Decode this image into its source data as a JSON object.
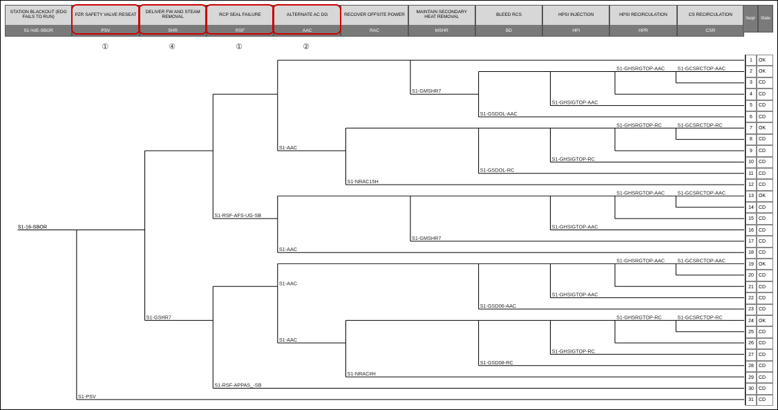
{
  "header": {
    "columns": [
      {
        "title": "STATION BLACKOUT (EDG FAILS TO RUN)",
        "abbr": "S1-%IE-SBOR"
      },
      {
        "title": "PZR SAFETY VALVE RESEAT",
        "abbr": "PSV",
        "highlight": true,
        "annot": "①"
      },
      {
        "title": "DELIVER FW AND STEAM REMOVAL",
        "abbr": "SHR",
        "highlight": true,
        "annot": "④"
      },
      {
        "title": "RCP SEAL FAILURE",
        "abbr": "RSF",
        "highlight": true,
        "annot": "①"
      },
      {
        "title": "ALTERNATE AC DG",
        "abbr": "AAC",
        "highlight": true,
        "annot": "②"
      },
      {
        "title": "RECOVER OFFSITE POWER",
        "abbr": "RAC"
      },
      {
        "title": "MAINTAIN SECONDARY HEAT REMOVAL",
        "abbr": "MSHR"
      },
      {
        "title": "BLEED RCS",
        "abbr": "BD"
      },
      {
        "title": "HPSI INJECTION",
        "abbr": "HPI"
      },
      {
        "title": "HPSI RECIRCULATION",
        "abbr": "HPR"
      },
      {
        "title": "CS RECIRCULATION",
        "abbr": "CSR"
      }
    ],
    "endcols": [
      "Seq#",
      "State"
    ]
  },
  "tree": {
    "root_label": "S1-16-SBOR",
    "upper_labels": {
      "psv": "S1-PSV",
      "gshr7": "S1-GSHR7",
      "rsf_afs": "S1-RSF-AFS-UG-SB",
      "rsf_appas": "S1-RSF-APPAS_-SB",
      "aac_a": "S1-AAC",
      "aac_b": "S1-AAC",
      "aac_c": "S1-AAC",
      "aac_d": "S1-AAC",
      "nrac_a": "S1-NRAC15H",
      "nrac_b": "S1-NRAC#H",
      "gmshr_a": "S1-GMSHR7",
      "gmshr_b": "S1-GMSHR7",
      "gsdol_aac": "S1-GSDOL-AAC",
      "gsdol_rc": "S1-GSDOL-RC",
      "gsd06_aac": "S1-GSD06-AAC",
      "gsd08_rc": "S1-GSD08-RC",
      "ghsi_aac_1": "S1-GHSIGTOP-AAC",
      "ghsi_aac_2": "S1-GHSIGTOP-AAC",
      "ghsi_rc_1": "S1-GHSIGTOP-RC",
      "ghsi_rc_2": "S1-GHSIGTOP-RC",
      "ghsr_aac_1": "S1-GHSRGTOP-AAC",
      "ghsr_aac_2": "S1-GHSRGTOP-AAC",
      "ghsr_aac_3": "S1-GHSRGTOP-AAC",
      "ghsr_rc_1": "S1-GHSRGTOP-RC",
      "ghsr_rc_2": "S1-GHSRGTOP-RC",
      "gcsr_aac_1": "S1-GCSRCTOP-AAC",
      "gcsr_aac_2": "S1-GCSRCTOP-AAC",
      "gcsr_aac_3": "S1-GCSRCTOP-AAC",
      "gcsr_rc_1": "S1-GCSRCTOP-RC",
      "gcsr_rc_2": "S1-GCSRCTOP-RC"
    }
  },
  "sequences": [
    {
      "n": 1,
      "s": "OK"
    },
    {
      "n": 2,
      "s": "OK"
    },
    {
      "n": 3,
      "s": "CD"
    },
    {
      "n": 4,
      "s": "CD"
    },
    {
      "n": 5,
      "s": "CD"
    },
    {
      "n": 6,
      "s": "CD"
    },
    {
      "n": 7,
      "s": "OK"
    },
    {
      "n": 8,
      "s": "CD"
    },
    {
      "n": 9,
      "s": "CD"
    },
    {
      "n": 10,
      "s": "CD"
    },
    {
      "n": 11,
      "s": "CD"
    },
    {
      "n": 12,
      "s": "CD"
    },
    {
      "n": 13,
      "s": "OK"
    },
    {
      "n": 14,
      "s": "CD"
    },
    {
      "n": 15,
      "s": "CD"
    },
    {
      "n": 16,
      "s": "CD"
    },
    {
      "n": 17,
      "s": "CD"
    },
    {
      "n": 18,
      "s": "CD"
    },
    {
      "n": 19,
      "s": "OK"
    },
    {
      "n": 20,
      "s": "CD"
    },
    {
      "n": 21,
      "s": "CD"
    },
    {
      "n": 22,
      "s": "CD"
    },
    {
      "n": 23,
      "s": "CD"
    },
    {
      "n": 24,
      "s": "OK"
    },
    {
      "n": 25,
      "s": "CD"
    },
    {
      "n": 26,
      "s": "CD"
    },
    {
      "n": 27,
      "s": "CD"
    },
    {
      "n": 28,
      "s": "CD"
    },
    {
      "n": 29,
      "s": "CD"
    },
    {
      "n": 30,
      "s": "CD"
    },
    {
      "n": 31,
      "s": "CD"
    }
  ],
  "style": {
    "header_bg_top": "#d7d7d7",
    "header_bg_bot": "#7a7a7a",
    "highlight_color": "#c00",
    "line_color": "#000",
    "font_size_header": 6.5,
    "font_size_node": 7
  }
}
